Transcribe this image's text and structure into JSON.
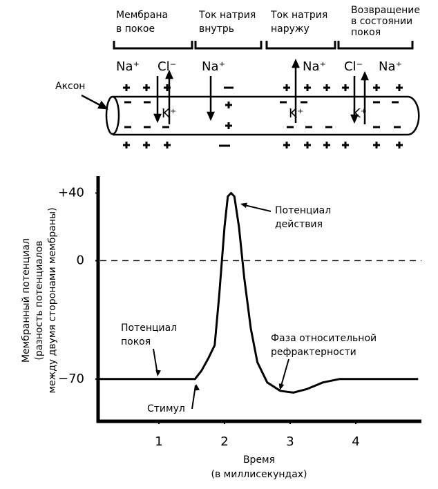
{
  "diagram": {
    "headers": [
      [
        "Мембрана",
        "в покое"
      ],
      [
        "Ток натрия",
        "внутрь"
      ],
      [
        "Ток натрия",
        "наружу"
      ],
      [
        "Возвращение",
        "в состоянии",
        "покоя"
      ]
    ],
    "ions": [
      "Na⁺",
      "Cl⁻",
      "Na⁺",
      "Na⁺",
      "Cl⁻",
      "Na⁺"
    ],
    "inner_ions": [
      "K⁺",
      "K⁺",
      "K⁺"
    ],
    "axon_label": "Аксон"
  },
  "chart_data": {
    "type": "line",
    "x_label": [
      "Время",
      "(в миллисекундах)"
    ],
    "y_label": [
      "Мембранный потенциал",
      "(разность потенциалов",
      "между двумя сторонами мембраны)"
    ],
    "annotations": {
      "action_potential": [
        "Потенциал",
        "действия"
      ],
      "resting_potential": [
        "Потенциал",
        "покоя"
      ],
      "refractory": [
        "Фаза относительной",
        "рефрактерности"
      ],
      "stimulus": "Стимул"
    },
    "xlim": [
      0,
      5
    ],
    "ylim": [
      -95,
      50
    ],
    "xticks": [
      1,
      2,
      3,
      4
    ],
    "yticks": [
      {
        "value": 40,
        "label": "+40"
      },
      0,
      {
        "value": -70,
        "label": "−70"
      }
    ],
    "reference_line": 0,
    "series": [
      {
        "color": "#000000",
        "x": [
          0.05,
          1.55,
          1.65,
          1.75,
          1.85,
          1.92,
          2.0,
          2.05,
          2.1,
          2.15,
          2.22,
          2.3,
          2.4,
          2.5,
          2.65,
          2.85,
          3.05,
          3.25,
          3.5,
          3.75,
          4.95
        ],
        "values": [
          -70,
          -70,
          -65,
          -58,
          -50,
          -20,
          20,
          38,
          40,
          38,
          20,
          -10,
          -40,
          -60,
          -72,
          -77,
          -78,
          -76,
          -72,
          -70,
          -70
        ]
      }
    ]
  }
}
